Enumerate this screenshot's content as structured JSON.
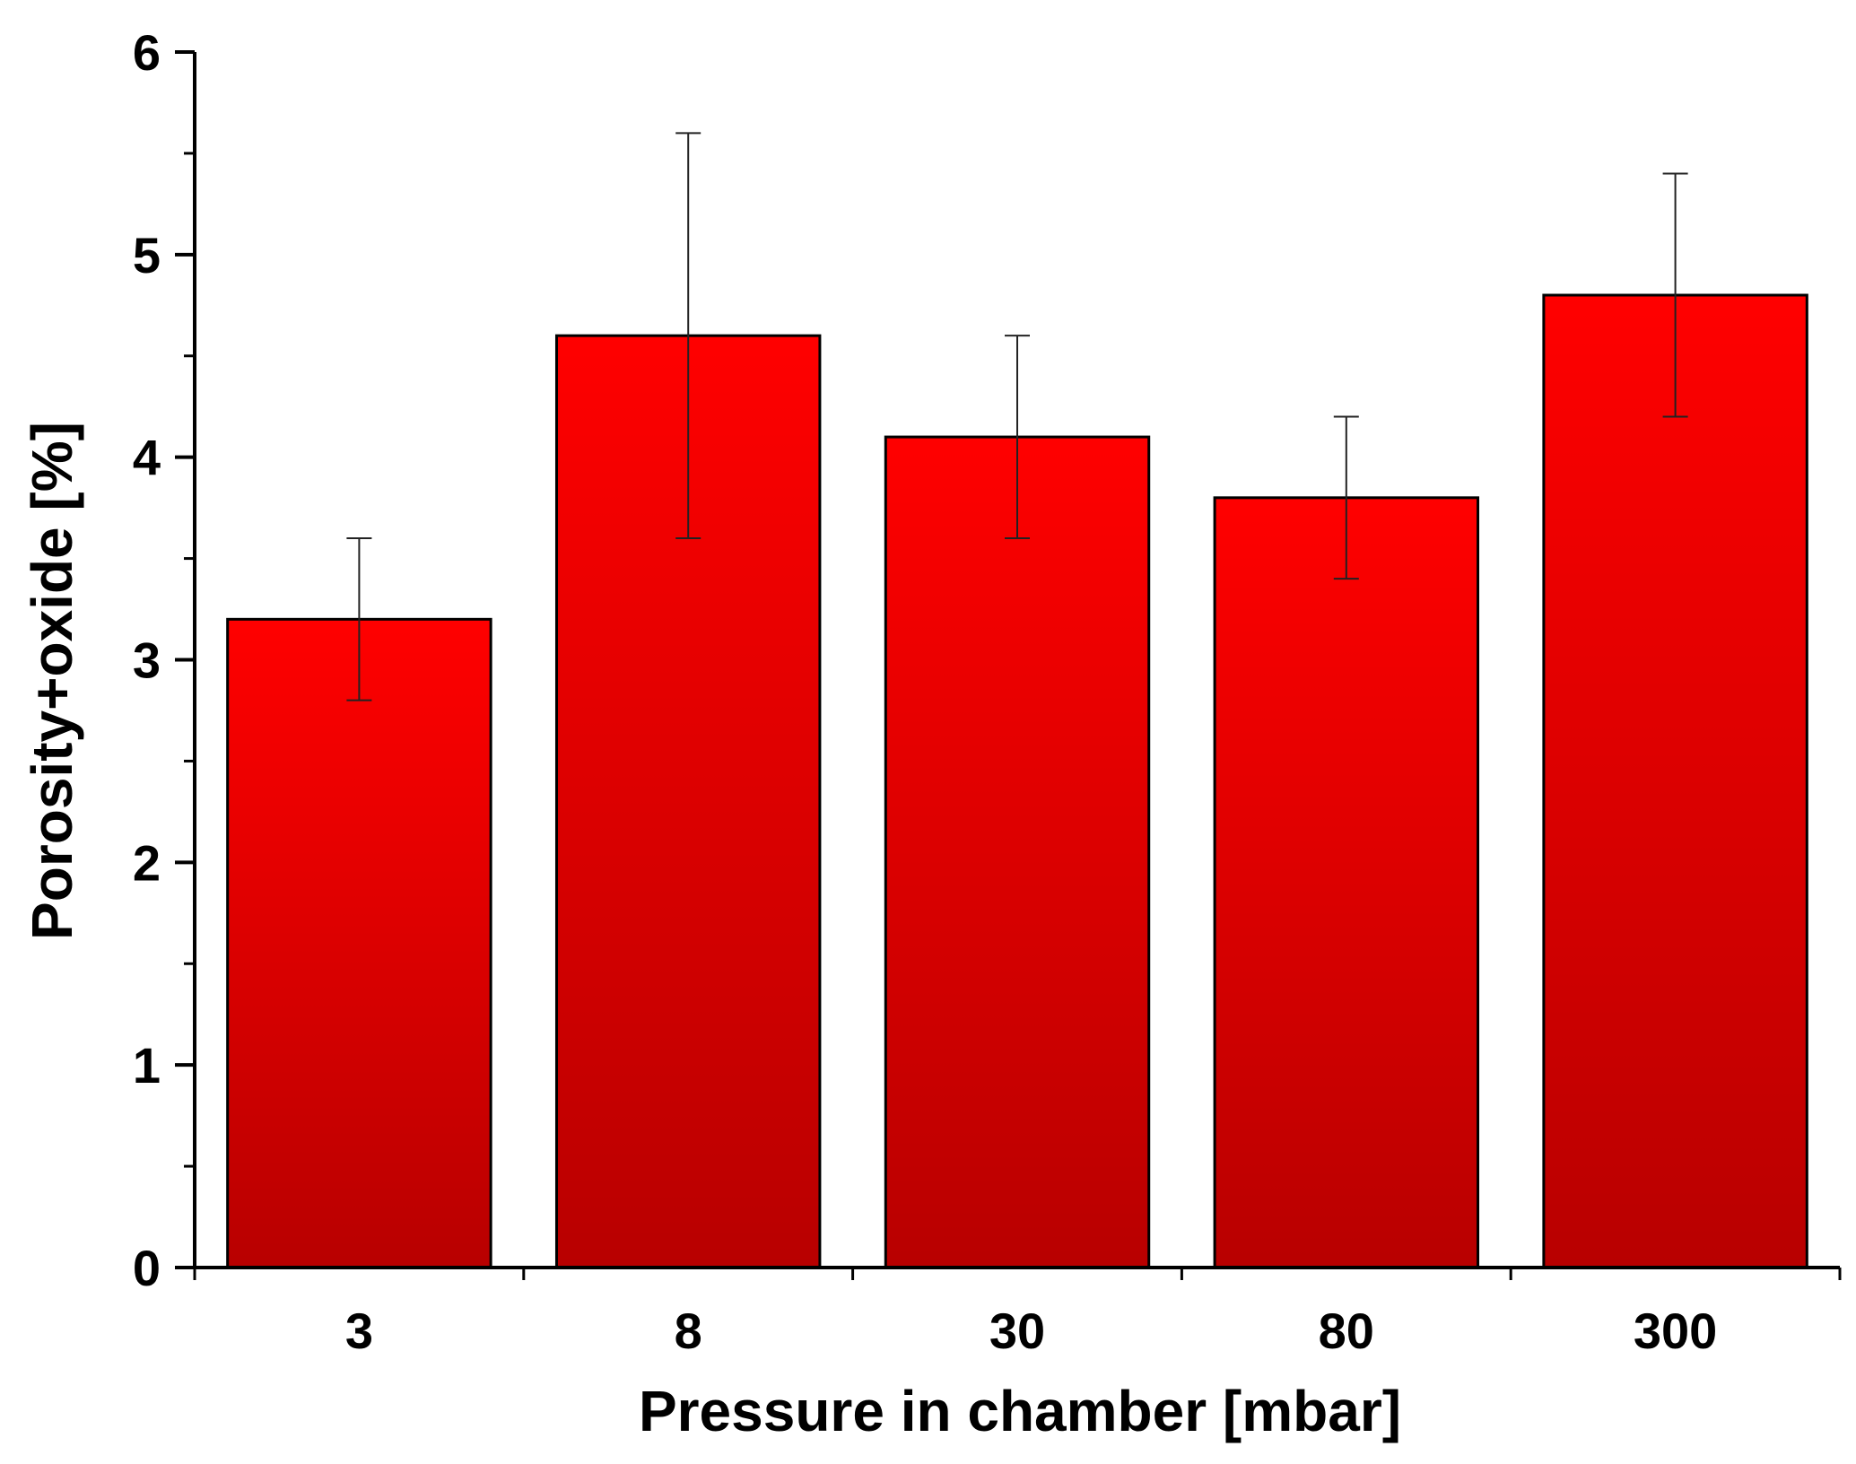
{
  "chart_data": {
    "type": "bar",
    "title": "",
    "xlabel": "Pressure in chamber [mbar]",
    "ylabel": "Porosity+oxide [%]",
    "categories": [
      "3",
      "8",
      "30",
      "80",
      "300"
    ],
    "values": [
      3.2,
      4.6,
      4.1,
      3.8,
      4.8
    ],
    "error_low": [
      2.8,
      3.6,
      3.6,
      3.4,
      4.2
    ],
    "error_high": [
      3.6,
      5.6,
      4.6,
      4.2,
      5.4
    ],
    "ylim": [
      0,
      6
    ],
    "yticks": [
      "0",
      "1",
      "2",
      "3",
      "4",
      "5",
      "6"
    ],
    "grid": false,
    "colors": {
      "bar_top": "#ff0000",
      "bar_bottom": "#b80000",
      "bar_edge": "#000000",
      "axis": "#000000",
      "errorbar": "#222222"
    }
  }
}
